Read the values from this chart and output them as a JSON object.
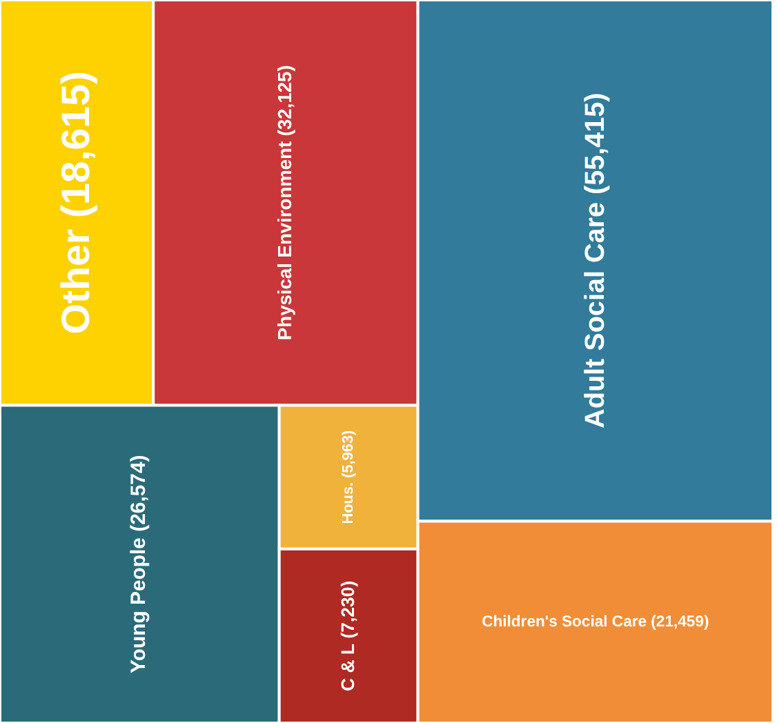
{
  "chart_data": {
    "type": "other",
    "categories": [
      "Other",
      "Physical Environment",
      "Adult Social Care",
      "Young People",
      "Hous.",
      "C & L",
      "Children's Social Care"
    ],
    "values": [
      18615,
      32125,
      55415,
      26574,
      5963,
      7230,
      21459
    ],
    "colors": [
      "#fed100",
      "#c9373a",
      "#327b9a",
      "#2b6b79",
      "#f1b23c",
      "#ae2a23",
      "#f18d37"
    ],
    "data_labels": true,
    "value_labels": [
      "(18,615)",
      "(32,125)",
      "(55,415)",
      "(26,574)",
      "(5,963)",
      "(7,230)",
      "(21,459)"
    ]
  }
}
